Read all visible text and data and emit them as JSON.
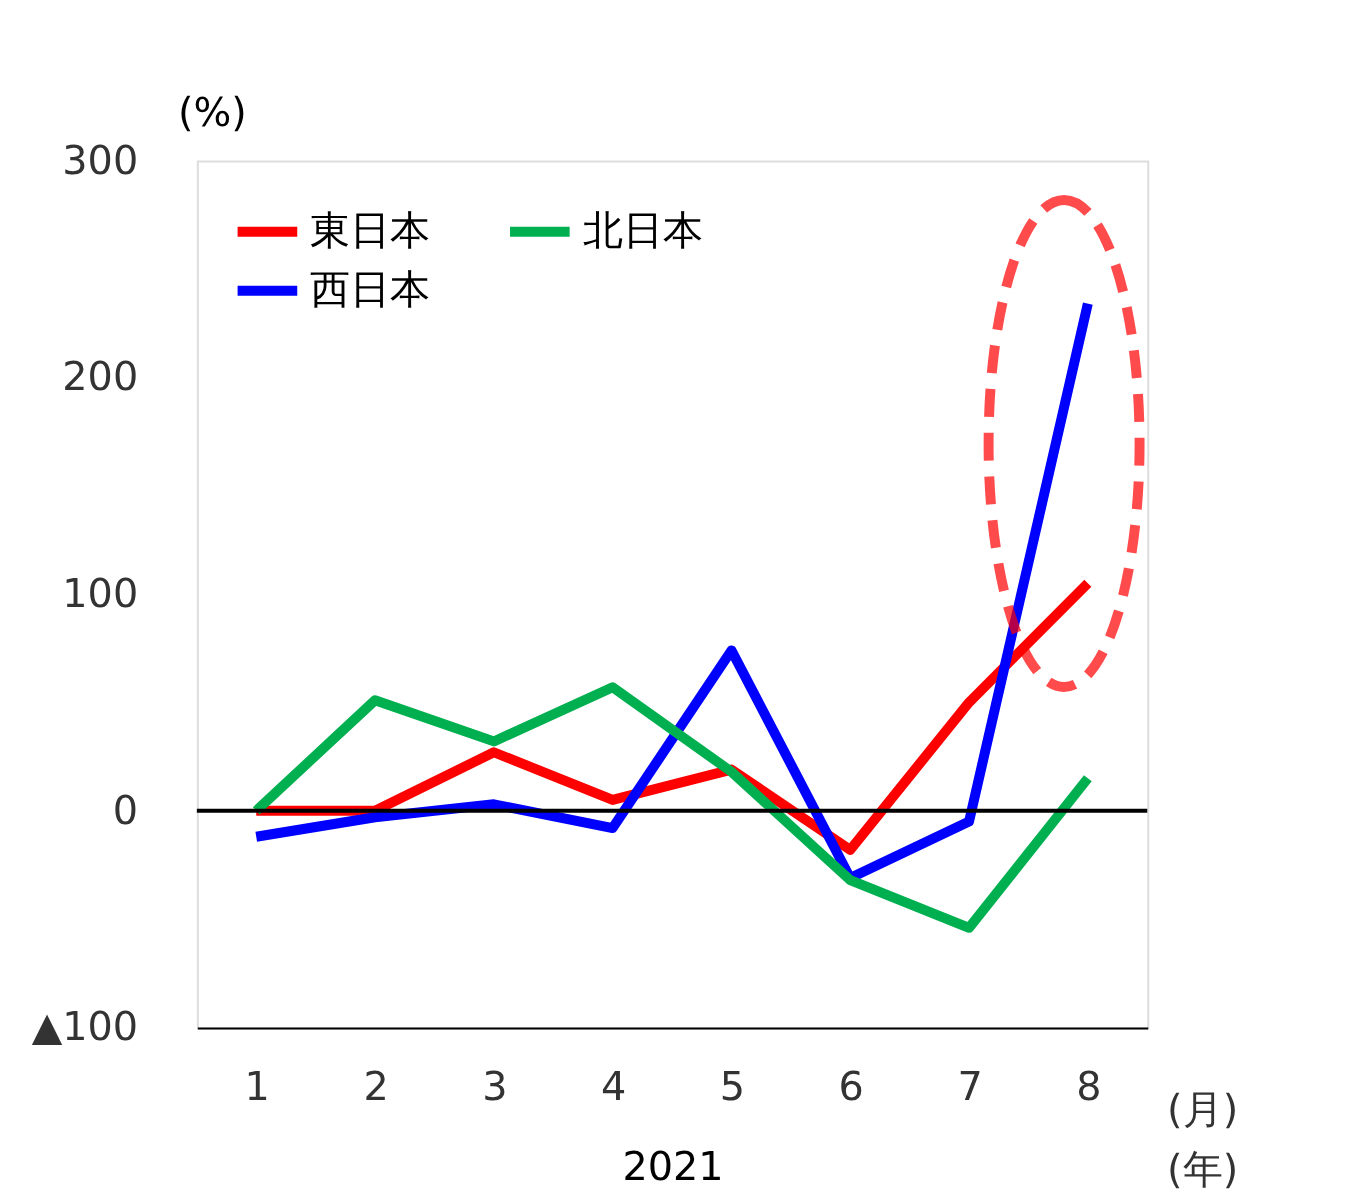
{
  "chart_data": {
    "type": "line",
    "ylabel": "(%)",
    "xlabel": "2021",
    "categories": [
      "1",
      "2",
      "3",
      "4",
      "5",
      "6",
      "7",
      "8"
    ],
    "series": [
      {
        "name": "東日本",
        "color": "#ff0000",
        "values": [
          0,
          0,
          27,
          5,
          19,
          -18,
          50,
          105
        ]
      },
      {
        "name": "西日本",
        "color": "#0000ff",
        "values": [
          -12,
          -3,
          3,
          -8,
          74,
          -31,
          -5,
          234
        ]
      },
      {
        "name": "北日本",
        "color": "#00b050",
        "values": [
          0,
          51,
          32,
          57,
          18,
          -32,
          -54,
          15
        ]
      }
    ],
    "ylim": [
      -100,
      300
    ],
    "yticks": [
      {
        "value": -100,
        "label": "▲100"
      },
      0,
      100,
      200,
      300
    ],
    "ref_lines": [
      {
        "axis": "y",
        "value": 0,
        "color": "#000000"
      }
    ],
    "annotations": [
      "(月)",
      "(年)"
    ],
    "grid": false,
    "legend": "top left",
    "marker": "none",
    "line_style": "solid"
  }
}
